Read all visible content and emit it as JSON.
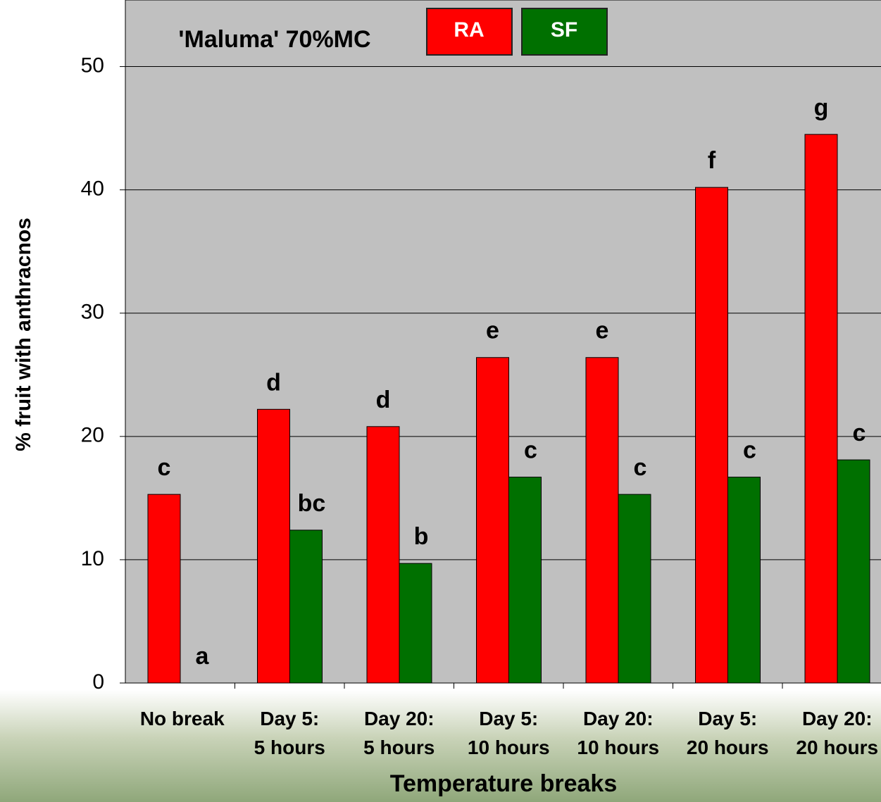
{
  "chart_data": {
    "type": "bar",
    "title": "'Maluma'  70%MC",
    "x_label": "Temperature breaks",
    "y_label": "% fruit with anthracnos",
    "categories": [
      "No break",
      "Day 5:\n5 hours",
      "Day 20:\n5 hours",
      "Day 5:\n10 hours",
      "Day 20:\n10 hours",
      "Day 5:\n20 hours",
      "Day 20:\n20 hours"
    ],
    "series": [
      {
        "name": "RA",
        "color": "#ff0000",
        "values": [
          15.3,
          22.2,
          20.8,
          26.4,
          26.4,
          40.2,
          44.5
        ],
        "letters": [
          "c",
          "d",
          "d",
          "e",
          "e",
          "f",
          "g"
        ]
      },
      {
        "name": "SF",
        "color": "#007000",
        "values": [
          0,
          12.4,
          9.7,
          16.7,
          15.3,
          16.7,
          18.1
        ],
        "letters": [
          "a",
          "bc",
          "b",
          "c",
          "c",
          "c",
          "c"
        ]
      }
    ],
    "ylim": [
      0,
      55.4
    ],
    "yticks": [
      0,
      10,
      20,
      30,
      40,
      50
    ],
    "grid": true,
    "plot_background": "#c0c0c0"
  }
}
